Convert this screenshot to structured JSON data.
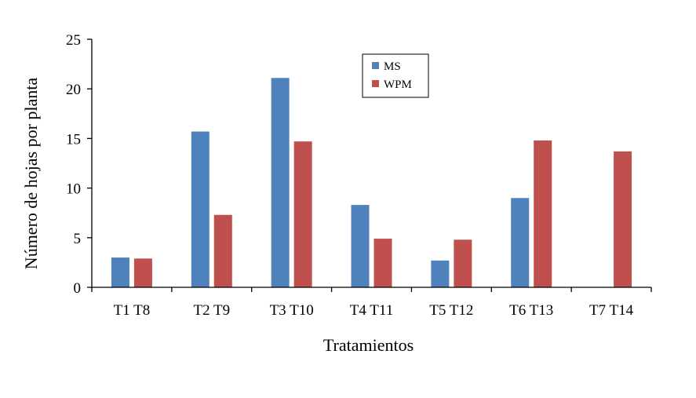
{
  "chart_data": {
    "type": "bar",
    "title": "",
    "xlabel": "Tratamientos",
    "ylabel": "Número de hojas por planta",
    "ylim": [
      0,
      25
    ],
    "yticks": [
      0,
      5,
      10,
      15,
      20,
      25
    ],
    "grid": false,
    "legend_position": "top-center",
    "categories": [
      "T1 T8",
      "T2 T9",
      "T3 T10",
      "T4 T11",
      "T5 T12",
      "T6 T13",
      "T7 T14"
    ],
    "series": [
      {
        "name": "MS",
        "color": "#4f81bd",
        "values": [
          3.0,
          15.7,
          21.1,
          8.3,
          2.7,
          9.0,
          0
        ]
      },
      {
        "name": "WPM",
        "color": "#c0504d",
        "values": [
          2.9,
          7.3,
          14.7,
          4.9,
          4.8,
          14.8,
          13.7
        ]
      }
    ]
  }
}
